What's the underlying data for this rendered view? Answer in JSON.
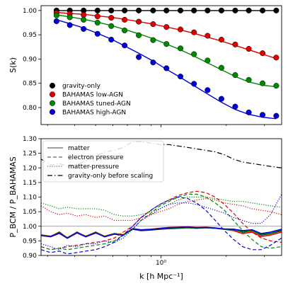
{
  "chart_data": [
    {
      "type": "scatter",
      "panel": "top",
      "ylabel": "S(k)",
      "xscale": "log",
      "xlim": [
        0.28,
        3.6
      ],
      "ylim": [
        0.765,
        1.01
      ],
      "yticks": [
        0.8,
        0.85,
        0.9,
        0.95,
        1.0
      ],
      "ytick_labels": [
        "0.80",
        "0.85",
        "0.90",
        "0.95",
        "1.00"
      ],
      "legend_placement": "lower-left",
      "grid": false,
      "series": [
        {
          "name": "gravity-only",
          "color": "#000000",
          "x": [
            0.33,
            0.38,
            0.44,
            0.51,
            0.59,
            0.68,
            0.79,
            0.92,
            1.06,
            1.23,
            1.42,
            1.64,
            1.9,
            2.2,
            2.54,
            2.94,
            3.4
          ],
          "points": [
            1.0,
            1.0,
            1.0,
            1.0,
            1.0,
            1.0,
            1.0,
            1.0,
            1.0,
            1.0,
            1.0,
            1.0,
            1.0,
            1.0,
            1.0,
            1.0,
            1.0
          ],
          "curve": [
            1.0,
            1.0,
            1.0,
            1.0,
            1.0,
            1.0,
            1.0,
            1.0,
            1.0,
            1.0,
            1.0,
            1.0,
            1.0,
            1.0,
            1.0,
            1.0,
            1.0
          ]
        },
        {
          "name": "BAHAMAS low-AGN",
          "color": "#e00000",
          "x": [
            0.33,
            0.38,
            0.44,
            0.51,
            0.59,
            0.68,
            0.79,
            0.92,
            1.06,
            1.23,
            1.42,
            1.64,
            1.9,
            2.2,
            2.54,
            2.94,
            3.4
          ],
          "points": [
            0.995,
            0.993,
            0.991,
            0.988,
            0.985,
            0.981,
            0.977,
            0.972,
            0.966,
            0.961,
            0.955,
            0.948,
            0.94,
            0.93,
            0.921,
            0.912,
            0.903
          ],
          "curve": [
            0.996,
            0.994,
            0.992,
            0.989,
            0.986,
            0.982,
            0.977,
            0.972,
            0.966,
            0.96,
            0.953,
            0.945,
            0.937,
            0.928,
            0.919,
            0.91,
            0.901
          ]
        },
        {
          "name": "BAHAMAS tuned-AGN",
          "color": "#008800",
          "x": [
            0.33,
            0.38,
            0.44,
            0.51,
            0.59,
            0.68,
            0.79,
            0.92,
            1.06,
            1.23,
            1.42,
            1.64,
            1.9,
            2.2,
            2.54,
            2.94,
            3.4
          ],
          "points": [
            0.99,
            0.986,
            0.981,
            0.975,
            0.968,
            0.959,
            0.949,
            0.939,
            0.931,
            0.922,
            0.91,
            0.897,
            0.882,
            0.867,
            0.857,
            0.85,
            0.845
          ],
          "curve": [
            0.991,
            0.987,
            0.982,
            0.976,
            0.969,
            0.961,
            0.952,
            0.942,
            0.931,
            0.919,
            0.906,
            0.892,
            0.878,
            0.864,
            0.853,
            0.846,
            0.843
          ]
        },
        {
          "name": "BAHAMAS high-AGN",
          "color": "#0000dd",
          "x": [
            0.33,
            0.38,
            0.44,
            0.51,
            0.59,
            0.68,
            0.79,
            0.92,
            1.06,
            1.23,
            1.42,
            1.64,
            1.9,
            2.2,
            2.54,
            2.94,
            3.4
          ],
          "points": [
            0.978,
            0.97,
            0.962,
            0.952,
            0.94,
            0.928,
            0.904,
            0.893,
            0.881,
            0.864,
            0.849,
            0.836,
            0.818,
            0.802,
            0.79,
            0.785,
            0.783
          ],
          "curve": [
            0.981,
            0.973,
            0.964,
            0.953,
            0.941,
            0.927,
            0.912,
            0.896,
            0.879,
            0.862,
            0.845,
            0.828,
            0.811,
            0.796,
            0.786,
            0.78,
            0.777
          ]
        }
      ]
    },
    {
      "type": "line",
      "panel": "bottom",
      "xlabel": "k [h Mpc⁻¹]",
      "ylabel": "P_BCM / P_BAHAMAS",
      "xscale": "log",
      "xlim": [
        0.28,
        3.6
      ],
      "ylim": [
        0.9,
        1.3
      ],
      "xticks": [
        1.0
      ],
      "xtick_labels": [
        "10⁰"
      ],
      "yticks": [
        0.9,
        0.95,
        1.0,
        1.05,
        1.1,
        1.15,
        1.2,
        1.25,
        1.3
      ],
      "ytick_labels": [
        "0.90",
        "0.95",
        "1.00",
        "1.05",
        "1.10",
        "1.15",
        "1.20",
        "1.25",
        "1.30"
      ],
      "legend_placement": "upper-left",
      "grid": false,
      "reference_line": 1.0,
      "legend": [
        {
          "label": "matter",
          "style": "solid"
        },
        {
          "label": "electron pressure",
          "style": "dashed"
        },
        {
          "label": "matter-pressure",
          "style": "dotted"
        },
        {
          "label": "gravity-only before scaling",
          "style": "dashdot"
        }
      ],
      "x": [
        0.28,
        0.31,
        0.34,
        0.37,
        0.41,
        0.45,
        0.5,
        0.55,
        0.61,
        0.67,
        0.74,
        0.81,
        0.9,
        0.99,
        1.09,
        1.2,
        1.33,
        1.46,
        1.61,
        1.78,
        1.96,
        2.16,
        2.38,
        2.63,
        2.9,
        3.2,
        3.6
      ],
      "series": [
        {
          "name": "gravity-only before scaling",
          "color": "#000000",
          "style": "dashdot",
          "values": [
            1.23,
            1.21,
            1.215,
            1.205,
            1.21,
            1.225,
            1.24,
            1.255,
            1.26,
            1.27,
            1.29,
            1.29,
            1.285,
            1.28,
            1.28,
            1.275,
            1.27,
            1.265,
            1.26,
            1.255,
            1.245,
            1.23,
            1.22,
            1.215,
            1.21,
            1.205,
            1.2
          ]
        },
        {
          "name": "gravity-only matter",
          "color": "#000000",
          "style": "solid",
          "values": [
            0.97,
            0.965,
            0.98,
            0.96,
            0.98,
            0.965,
            0.98,
            0.965,
            0.975,
            0.97,
            0.99,
            0.985,
            0.987,
            0.99,
            0.992,
            0.993,
            0.995,
            0.993,
            0.995,
            0.993,
            0.99,
            0.99,
            0.98,
            0.985,
            0.97,
            0.975,
            0.985
          ]
        },
        {
          "name": "low-AGN matter",
          "color": "#e00000",
          "style": "solid",
          "values": [
            0.97,
            0.966,
            0.978,
            0.961,
            0.979,
            0.966,
            0.979,
            0.966,
            0.975,
            0.971,
            0.992,
            0.988,
            0.99,
            0.993,
            0.996,
            0.997,
            0.998,
            0.996,
            0.997,
            0.994,
            0.99,
            0.985,
            0.975,
            0.98,
            0.965,
            0.97,
            0.98
          ]
        },
        {
          "name": "tuned-AGN matter",
          "color": "#008800",
          "style": "solid",
          "values": [
            0.969,
            0.965,
            0.977,
            0.96,
            0.978,
            0.965,
            0.978,
            0.965,
            0.974,
            0.97,
            0.99,
            0.986,
            0.988,
            0.991,
            0.993,
            0.994,
            0.996,
            0.994,
            0.995,
            0.993,
            0.99,
            0.988,
            0.982,
            0.985,
            0.972,
            0.976,
            0.988
          ]
        },
        {
          "name": "high-AGN matter",
          "color": "#0000dd",
          "style": "solid",
          "values": [
            0.968,
            0.964,
            0.976,
            0.959,
            0.977,
            0.964,
            0.977,
            0.964,
            0.973,
            0.969,
            0.991,
            0.987,
            0.989,
            0.992,
            0.995,
            0.996,
            0.997,
            0.995,
            0.996,
            0.994,
            0.991,
            0.99,
            0.985,
            0.988,
            0.975,
            0.98,
            0.99
          ]
        },
        {
          "name": "low-AGN electron pressure",
          "color": "#e00000",
          "style": "dashed",
          "values": [
            0.93,
            0.92,
            0.925,
            0.93,
            0.935,
            0.94,
            0.945,
            0.95,
            0.96,
            0.98,
            1.0,
            1.03,
            1.055,
            1.075,
            1.09,
            1.105,
            1.115,
            1.12,
            1.115,
            1.1,
            1.075,
            1.045,
            1.01,
            0.98,
            0.96,
            0.95,
            0.945
          ]
        },
        {
          "name": "tuned-AGN electron pressure",
          "color": "#008800",
          "style": "dashed",
          "values": [
            0.93,
            0.92,
            0.925,
            0.92,
            0.925,
            0.93,
            0.935,
            0.94,
            0.95,
            0.97,
            0.99,
            1.02,
            1.045,
            1.07,
            1.085,
            1.1,
            1.11,
            1.11,
            1.1,
            1.08,
            1.055,
            1.02,
            0.985,
            0.955,
            0.93,
            0.925,
            0.93
          ]
        },
        {
          "name": "high-AGN electron pressure",
          "color": "#0000dd",
          "style": "dashed",
          "values": [
            0.92,
            0.91,
            0.915,
            0.905,
            0.91,
            0.915,
            0.92,
            0.93,
            0.945,
            0.97,
            1.0,
            1.03,
            1.055,
            1.075,
            1.09,
            1.1,
            1.095,
            1.08,
            1.055,
            1.02,
            0.985,
            0.955,
            0.93,
            0.92,
            0.92,
            0.935,
            0.96
          ]
        },
        {
          "name": "low-AGN matter-pressure",
          "color": "#e00000",
          "style": "dotted",
          "values": [
            1.07,
            1.05,
            1.04,
            1.045,
            1.035,
            1.04,
            1.03,
            1.035,
            1.02,
            1.02,
            1.02,
            1.03,
            1.04,
            1.05,
            1.06,
            1.075,
            1.085,
            1.09,
            1.095,
            1.09,
            1.08,
            1.075,
            1.07,
            1.06,
            1.055,
            1.05,
            1.04
          ]
        },
        {
          "name": "tuned-AGN matter-pressure",
          "color": "#008800",
          "style": "dotted",
          "values": [
            1.08,
            1.07,
            1.06,
            1.065,
            1.06,
            1.06,
            1.06,
            1.055,
            1.04,
            1.035,
            1.035,
            1.04,
            1.05,
            1.06,
            1.075,
            1.09,
            1.1,
            1.1,
            1.1,
            1.095,
            1.09,
            1.085,
            1.085,
            1.08,
            1.075,
            1.07,
            1.065
          ]
        },
        {
          "name": "high-AGN matter-pressure",
          "color": "#0000dd",
          "style": "dotted",
          "values": [
            0.94,
            0.93,
            0.92,
            0.935,
            0.93,
            0.94,
            0.94,
            0.95,
            0.945,
            0.96,
            0.99,
            1.02,
            1.04,
            1.06,
            1.075,
            1.08,
            1.08,
            1.075,
            1.065,
            1.055,
            1.045,
            1.03,
            1.02,
            1.01,
            1.01,
            1.04,
            1.11
          ]
        }
      ]
    }
  ]
}
